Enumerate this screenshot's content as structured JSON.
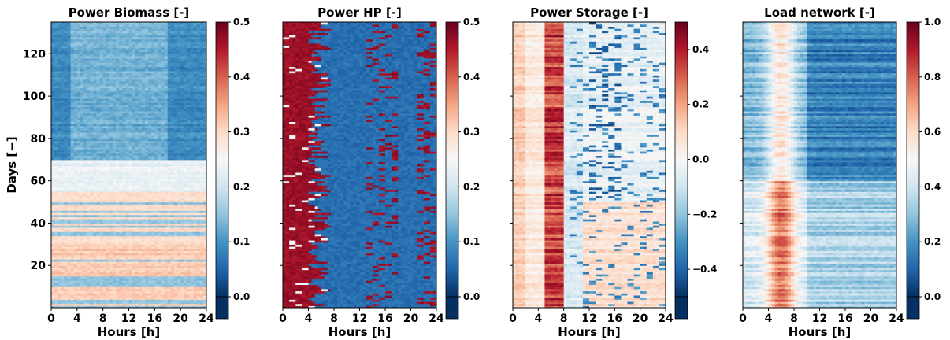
{
  "chart_data": [
    {
      "type": "heatmap",
      "title": "Power Biomass [-]",
      "xlabel": "Hours [h]",
      "ylabel": "Days [−]",
      "x_ticks": [
        "0",
        "4",
        "8",
        "12",
        "16",
        "20",
        "24"
      ],
      "y_ticks": [
        "20",
        "40",
        "60",
        "80",
        "100",
        "120"
      ],
      "xlim": [
        0,
        24
      ],
      "ylim": [
        0,
        135
      ],
      "colorbar": {
        "range": [
          0.0,
          0.5
        ],
        "ticks": [
          "0.0",
          "0.1",
          "0.2",
          "0.3",
          "0.4",
          "0.5"
        ],
        "colormap": "RdBu_r"
      },
      "value_bands": [
        {
          "days": [
            0,
            30
          ],
          "value": 0.33
        },
        {
          "days": [
            30,
            55
          ],
          "value": 0.31
        },
        {
          "days": [
            55,
            70
          ],
          "value": 0.23
        },
        {
          "days": [
            70,
            135
          ],
          "value": 0.13
        }
      ]
    },
    {
      "type": "heatmap",
      "title": "Power HP [-]",
      "xlabel": "Hours [h]",
      "ylabel": "",
      "x_ticks": [
        "0",
        "4",
        "8",
        "12",
        "16",
        "20",
        "24"
      ],
      "y_ticks": [],
      "xlim": [
        0,
        24
      ],
      "ylim": [
        0,
        135
      ],
      "colorbar": {
        "range": [
          0.0,
          0.5
        ],
        "ticks": [
          "0.0",
          "0.1",
          "0.2",
          "0.3",
          "0.4",
          "0.5"
        ],
        "colormap": "RdBu_r"
      },
      "value_bands": [
        {
          "hours": [
            0,
            6
          ],
          "value": 0.5
        },
        {
          "hours": [
            6,
            24
          ],
          "value": 0.04
        }
      ]
    },
    {
      "type": "heatmap",
      "title": "Power Storage [-]",
      "xlabel": "Hours [h]",
      "ylabel": "",
      "x_ticks": [
        "0",
        "4",
        "8",
        "12",
        "16",
        "20",
        "24"
      ],
      "y_ticks": [],
      "xlim": [
        0,
        24
      ],
      "ylim": [
        0,
        135
      ],
      "colorbar": {
        "range": [
          -0.5,
          0.5
        ],
        "ticks": [
          "−0.4",
          "−0.2",
          "0.0",
          "0.2",
          "0.4"
        ],
        "colormap": "RdBu_r"
      },
      "value_bands": [
        {
          "hours": [
            4,
            8
          ],
          "value": 0.3
        },
        {
          "hours": [
            8,
            24
          ],
          "value": -0.05
        }
      ]
    },
    {
      "type": "heatmap",
      "title": "Load network [-]",
      "xlabel": "Hours [h]",
      "ylabel": "",
      "x_ticks": [
        "0",
        "4",
        "8",
        "12",
        "16",
        "20",
        "24"
      ],
      "y_ticks": [],
      "xlim": [
        0,
        24
      ],
      "ylim": [
        0,
        135
      ],
      "colorbar": {
        "range": [
          0.0,
          1.0
        ],
        "ticks": [
          "0.0",
          "0.2",
          "0.4",
          "0.6",
          "0.8",
          "1.0"
        ],
        "colormap": "RdBu_r"
      },
      "value_bands": [
        {
          "hours": [
            3,
            8
          ],
          "days": [
            0,
            60
          ],
          "value": 0.75
        },
        {
          "hours": [
            10,
            24
          ],
          "days": [
            60,
            135
          ],
          "value": 0.2
        }
      ]
    }
  ]
}
